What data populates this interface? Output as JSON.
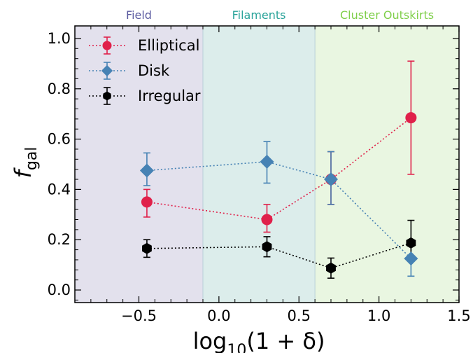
{
  "chart_data": {
    "type": "scatter",
    "xlabel_main": "log",
    "xlabel_sub": "10",
    "xlabel_rest": "(1 + δ)",
    "ylabel_main": "f",
    "ylabel_sub": "gal",
    "xlim": [
      -0.9,
      1.5
    ],
    "ylim": [
      -0.05,
      1.05
    ],
    "xticks": [
      -0.5,
      0.0,
      0.5,
      1.0,
      1.5
    ],
    "xtick_labels": [
      "−0.5",
      "0.0",
      "0.5",
      "1.0",
      "1.5"
    ],
    "yticks": [
      0.0,
      0.2,
      0.4,
      0.6,
      0.8,
      1.0
    ],
    "ytick_labels": [
      "0.0",
      "0.2",
      "0.4",
      "0.6",
      "0.8",
      "1.0"
    ],
    "regions": [
      {
        "label": "Field",
        "x0": -0.9,
        "x1": -0.1,
        "fill": "#e3e1ed",
        "text_color": "#5a5aa0"
      },
      {
        "label": "Filaments",
        "x0": -0.1,
        "x1": 0.6,
        "fill": "#dcedeb",
        "text_color": "#2aa39a"
      },
      {
        "label": "Cluster Outskirts",
        "x0": 0.6,
        "x1": 1.5,
        "fill": "#e9f6e1",
        "text_color": "#7fcf4a"
      }
    ],
    "legend_placement": "top-left",
    "series": [
      {
        "name": "Elliptical",
        "color": "#e0204a",
        "marker": "circle",
        "x": [
          -0.45,
          0.3,
          0.7,
          1.2
        ],
        "y": [
          0.35,
          0.28,
          0.44,
          0.685
        ],
        "err_low": [
          0.06,
          0.05,
          0.1,
          0.225
        ],
        "err_high": [
          0.05,
          0.06,
          0.11,
          0.225
        ]
      },
      {
        "name": "Disk",
        "color": "#4682b4",
        "marker": "diamond",
        "x": [
          -0.45,
          0.3,
          0.7,
          1.2
        ],
        "y": [
          0.475,
          0.51,
          0.44,
          0.125
        ],
        "err_low": [
          0.06,
          0.085,
          0.1,
          0.07
        ],
        "err_high": [
          0.07,
          0.08,
          0.11,
          0.06
        ]
      },
      {
        "name": "Irregular",
        "color": "#000000",
        "marker": "hexagon",
        "x": [
          -0.45,
          0.3,
          0.7,
          1.2
        ],
        "y": [
          0.165,
          0.172,
          0.087,
          0.187
        ],
        "err_low": [
          0.035,
          0.04,
          0.04,
          0.06
        ],
        "err_high": [
          0.035,
          0.04,
          0.04,
          0.09
        ]
      }
    ]
  }
}
